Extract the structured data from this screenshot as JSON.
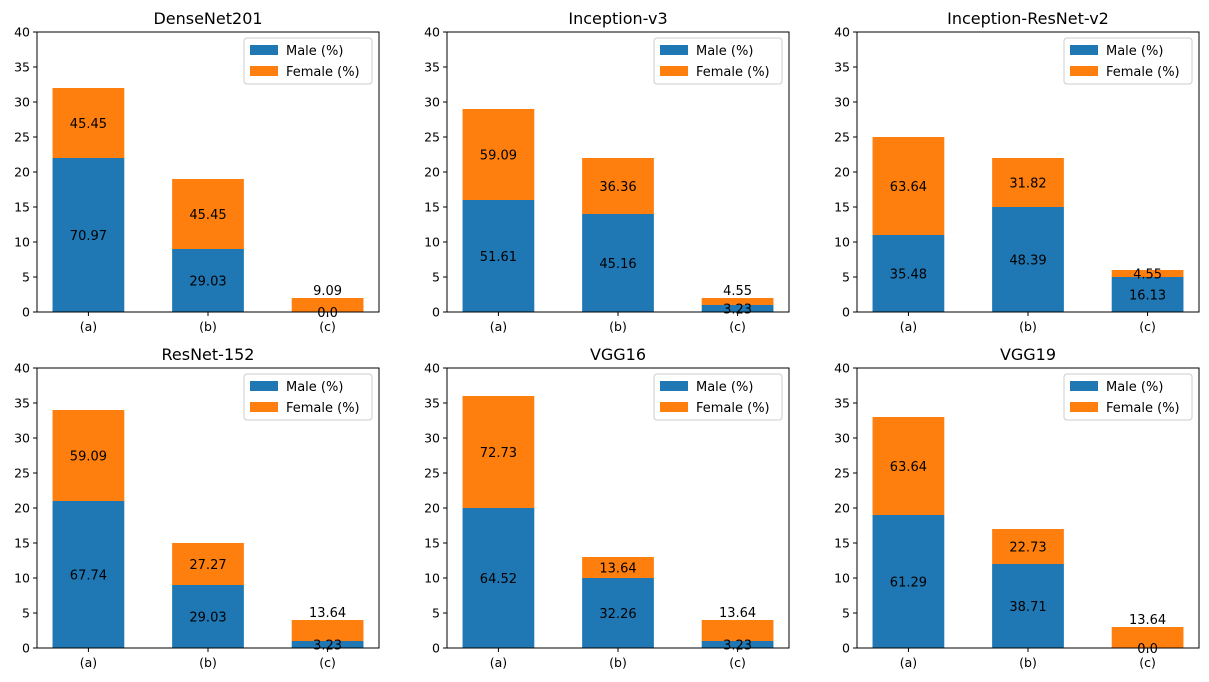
{
  "chart_data": [
    {
      "type": "bar",
      "stacked": true,
      "title": "DenseNet201",
      "categories": [
        "(a)",
        "(b)",
        "(c)"
      ],
      "ylim": [
        0,
        40
      ],
      "yticks": [
        0,
        5,
        10,
        15,
        20,
        25,
        30,
        35,
        40
      ],
      "legend": "top-right",
      "series": [
        {
          "name": "Male (%)",
          "values": [
            22,
            9,
            0
          ],
          "labels": [
            "70.97",
            "29.03",
            "0.0"
          ]
        },
        {
          "name": "Female (%)",
          "values": [
            10,
            10,
            2
          ],
          "labels": [
            "45.45",
            "45.45",
            "9.09"
          ]
        }
      ]
    },
    {
      "type": "bar",
      "stacked": true,
      "title": "Inception-v3",
      "categories": [
        "(a)",
        "(b)",
        "(c)"
      ],
      "ylim": [
        0,
        40
      ],
      "yticks": [
        0,
        5,
        10,
        15,
        20,
        25,
        30,
        35,
        40
      ],
      "legend": "top-right",
      "series": [
        {
          "name": "Male (%)",
          "values": [
            16,
            14,
            1
          ],
          "labels": [
            "51.61",
            "45.16",
            "3.23"
          ]
        },
        {
          "name": "Female (%)",
          "values": [
            13,
            8,
            1
          ],
          "labels": [
            "59.09",
            "36.36",
            "4.55"
          ]
        }
      ]
    },
    {
      "type": "bar",
      "stacked": true,
      "title": "Inception-ResNet-v2",
      "categories": [
        "(a)",
        "(b)",
        "(c)"
      ],
      "ylim": [
        0,
        40
      ],
      "yticks": [
        0,
        5,
        10,
        15,
        20,
        25,
        30,
        35,
        40
      ],
      "legend": "top-right",
      "series": [
        {
          "name": "Male (%)",
          "values": [
            11,
            15,
            5
          ],
          "labels": [
            "35.48",
            "48.39",
            "16.13"
          ]
        },
        {
          "name": "Female (%)",
          "values": [
            14,
            7,
            1
          ],
          "labels": [
            "63.64",
            "31.82",
            "4.55"
          ]
        }
      ]
    },
    {
      "type": "bar",
      "stacked": true,
      "title": "ResNet-152",
      "categories": [
        "(a)",
        "(b)",
        "(c)"
      ],
      "ylim": [
        0,
        40
      ],
      "yticks": [
        0,
        5,
        10,
        15,
        20,
        25,
        30,
        35,
        40
      ],
      "legend": "top-right",
      "series": [
        {
          "name": "Male (%)",
          "values": [
            21,
            9,
            1
          ],
          "labels": [
            "67.74",
            "29.03",
            "3.23"
          ]
        },
        {
          "name": "Female (%)",
          "values": [
            13,
            6,
            3
          ],
          "labels": [
            "59.09",
            "27.27",
            "13.64"
          ]
        }
      ]
    },
    {
      "type": "bar",
      "stacked": true,
      "title": "VGG16",
      "categories": [
        "(a)",
        "(b)",
        "(c)"
      ],
      "ylim": [
        0,
        40
      ],
      "yticks": [
        0,
        5,
        10,
        15,
        20,
        25,
        30,
        35,
        40
      ],
      "legend": "top-right",
      "series": [
        {
          "name": "Male (%)",
          "values": [
            20,
            10,
            1
          ],
          "labels": [
            "64.52",
            "32.26",
            "3.23"
          ]
        },
        {
          "name": "Female (%)",
          "values": [
            16,
            3,
            3
          ],
          "labels": [
            "72.73",
            "13.64",
            "13.64"
          ]
        }
      ]
    },
    {
      "type": "bar",
      "stacked": true,
      "title": "VGG19",
      "categories": [
        "(a)",
        "(b)",
        "(c)"
      ],
      "ylim": [
        0,
        40
      ],
      "yticks": [
        0,
        5,
        10,
        15,
        20,
        25,
        30,
        35,
        40
      ],
      "legend": "top-right",
      "series": [
        {
          "name": "Male (%)",
          "values": [
            19,
            12,
            0
          ],
          "labels": [
            "61.29",
            "38.71",
            "0.0"
          ]
        },
        {
          "name": "Female (%)",
          "values": [
            14,
            5,
            3
          ],
          "labels": [
            "63.64",
            "22.73",
            "13.64"
          ]
        }
      ]
    }
  ],
  "colors": {
    "male": "#1f77b4",
    "female": "#ff7f0e"
  }
}
